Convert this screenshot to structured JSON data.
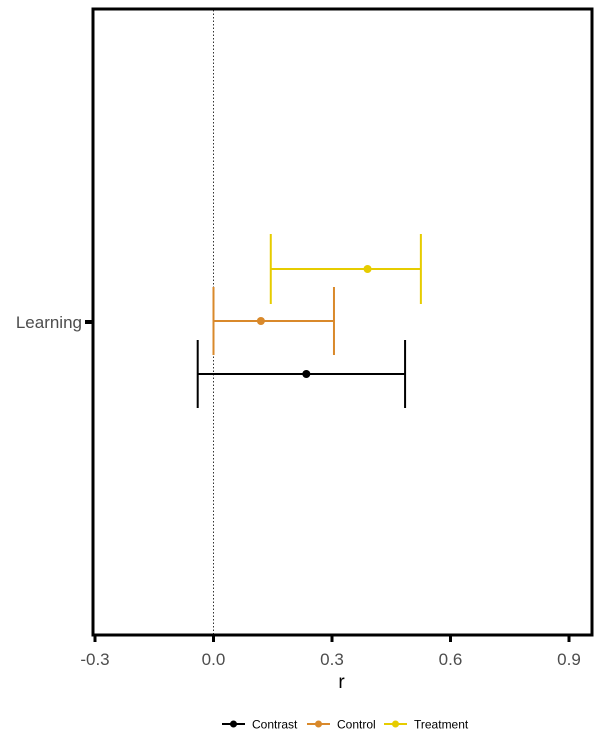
{
  "chart_data": {
    "type": "forest",
    "title": "",
    "xlabel": "r",
    "ylabel": "",
    "xlim": [
      -0.3,
      0.95
    ],
    "xticks": [
      -0.3,
      0.0,
      0.3,
      0.6,
      0.9
    ],
    "xtick_labels": [
      "-0.3",
      "0.0",
      "0.3",
      "0.6",
      "0.9"
    ],
    "categories": [
      "Learning"
    ],
    "reference_line": 0.0,
    "grid": false,
    "legend_position": "bottom",
    "series": [
      {
        "name": "Contrast",
        "color": "#000000",
        "estimate": 0.235,
        "ci_low": -0.04,
        "ci_high": 0.485
      },
      {
        "name": "Control",
        "color": "#d9892b",
        "estimate": 0.12,
        "ci_low": 0.0,
        "ci_high": 0.305
      },
      {
        "name": "Treatment",
        "color": "#e6cc00",
        "estimate": 0.39,
        "ci_low": 0.145,
        "ci_high": 0.525
      }
    ]
  }
}
